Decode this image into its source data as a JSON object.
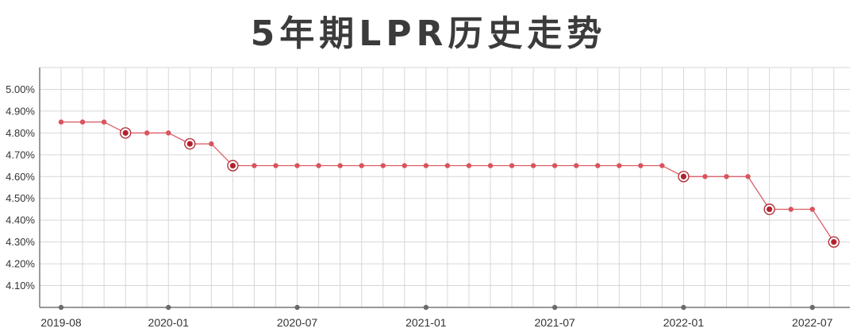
{
  "chart_data": {
    "type": "line",
    "title": "5年期LPR历史走势",
    "xlabel": "",
    "ylabel": "",
    "ylim": [
      4.0,
      5.1
    ],
    "yticks": [
      "4.10%",
      "4.20%",
      "4.30%",
      "4.40%",
      "4.50%",
      "4.60%",
      "4.70%",
      "4.80%",
      "4.90%",
      "5.00%"
    ],
    "ytick_values": [
      4.1,
      4.2,
      4.3,
      4.4,
      4.5,
      4.6,
      4.7,
      4.8,
      4.9,
      5.0
    ],
    "x_tick_labels": [
      "2019-08",
      "2020-01",
      "2020-07",
      "2021-01",
      "2021-07",
      "2022-01",
      "2022-07"
    ],
    "x_tick_indices": [
      0,
      5,
      11,
      17,
      23,
      29,
      35
    ],
    "grid": true,
    "series": [
      {
        "values": [
          4.85,
          4.85,
          4.85,
          4.8,
          4.8,
          4.8,
          4.75,
          4.75,
          4.65,
          4.65,
          4.65,
          4.65,
          4.65,
          4.65,
          4.65,
          4.65,
          4.65,
          4.65,
          4.65,
          4.65,
          4.65,
          4.65,
          4.65,
          4.65,
          4.65,
          4.65,
          4.65,
          4.65,
          4.65,
          4.6,
          4.6,
          4.6,
          4.6,
          4.45,
          4.45,
          4.45,
          4.3
        ],
        "change_indices": [
          3,
          6,
          8,
          29,
          33,
          36
        ],
        "color": "#d9545e"
      }
    ]
  }
}
